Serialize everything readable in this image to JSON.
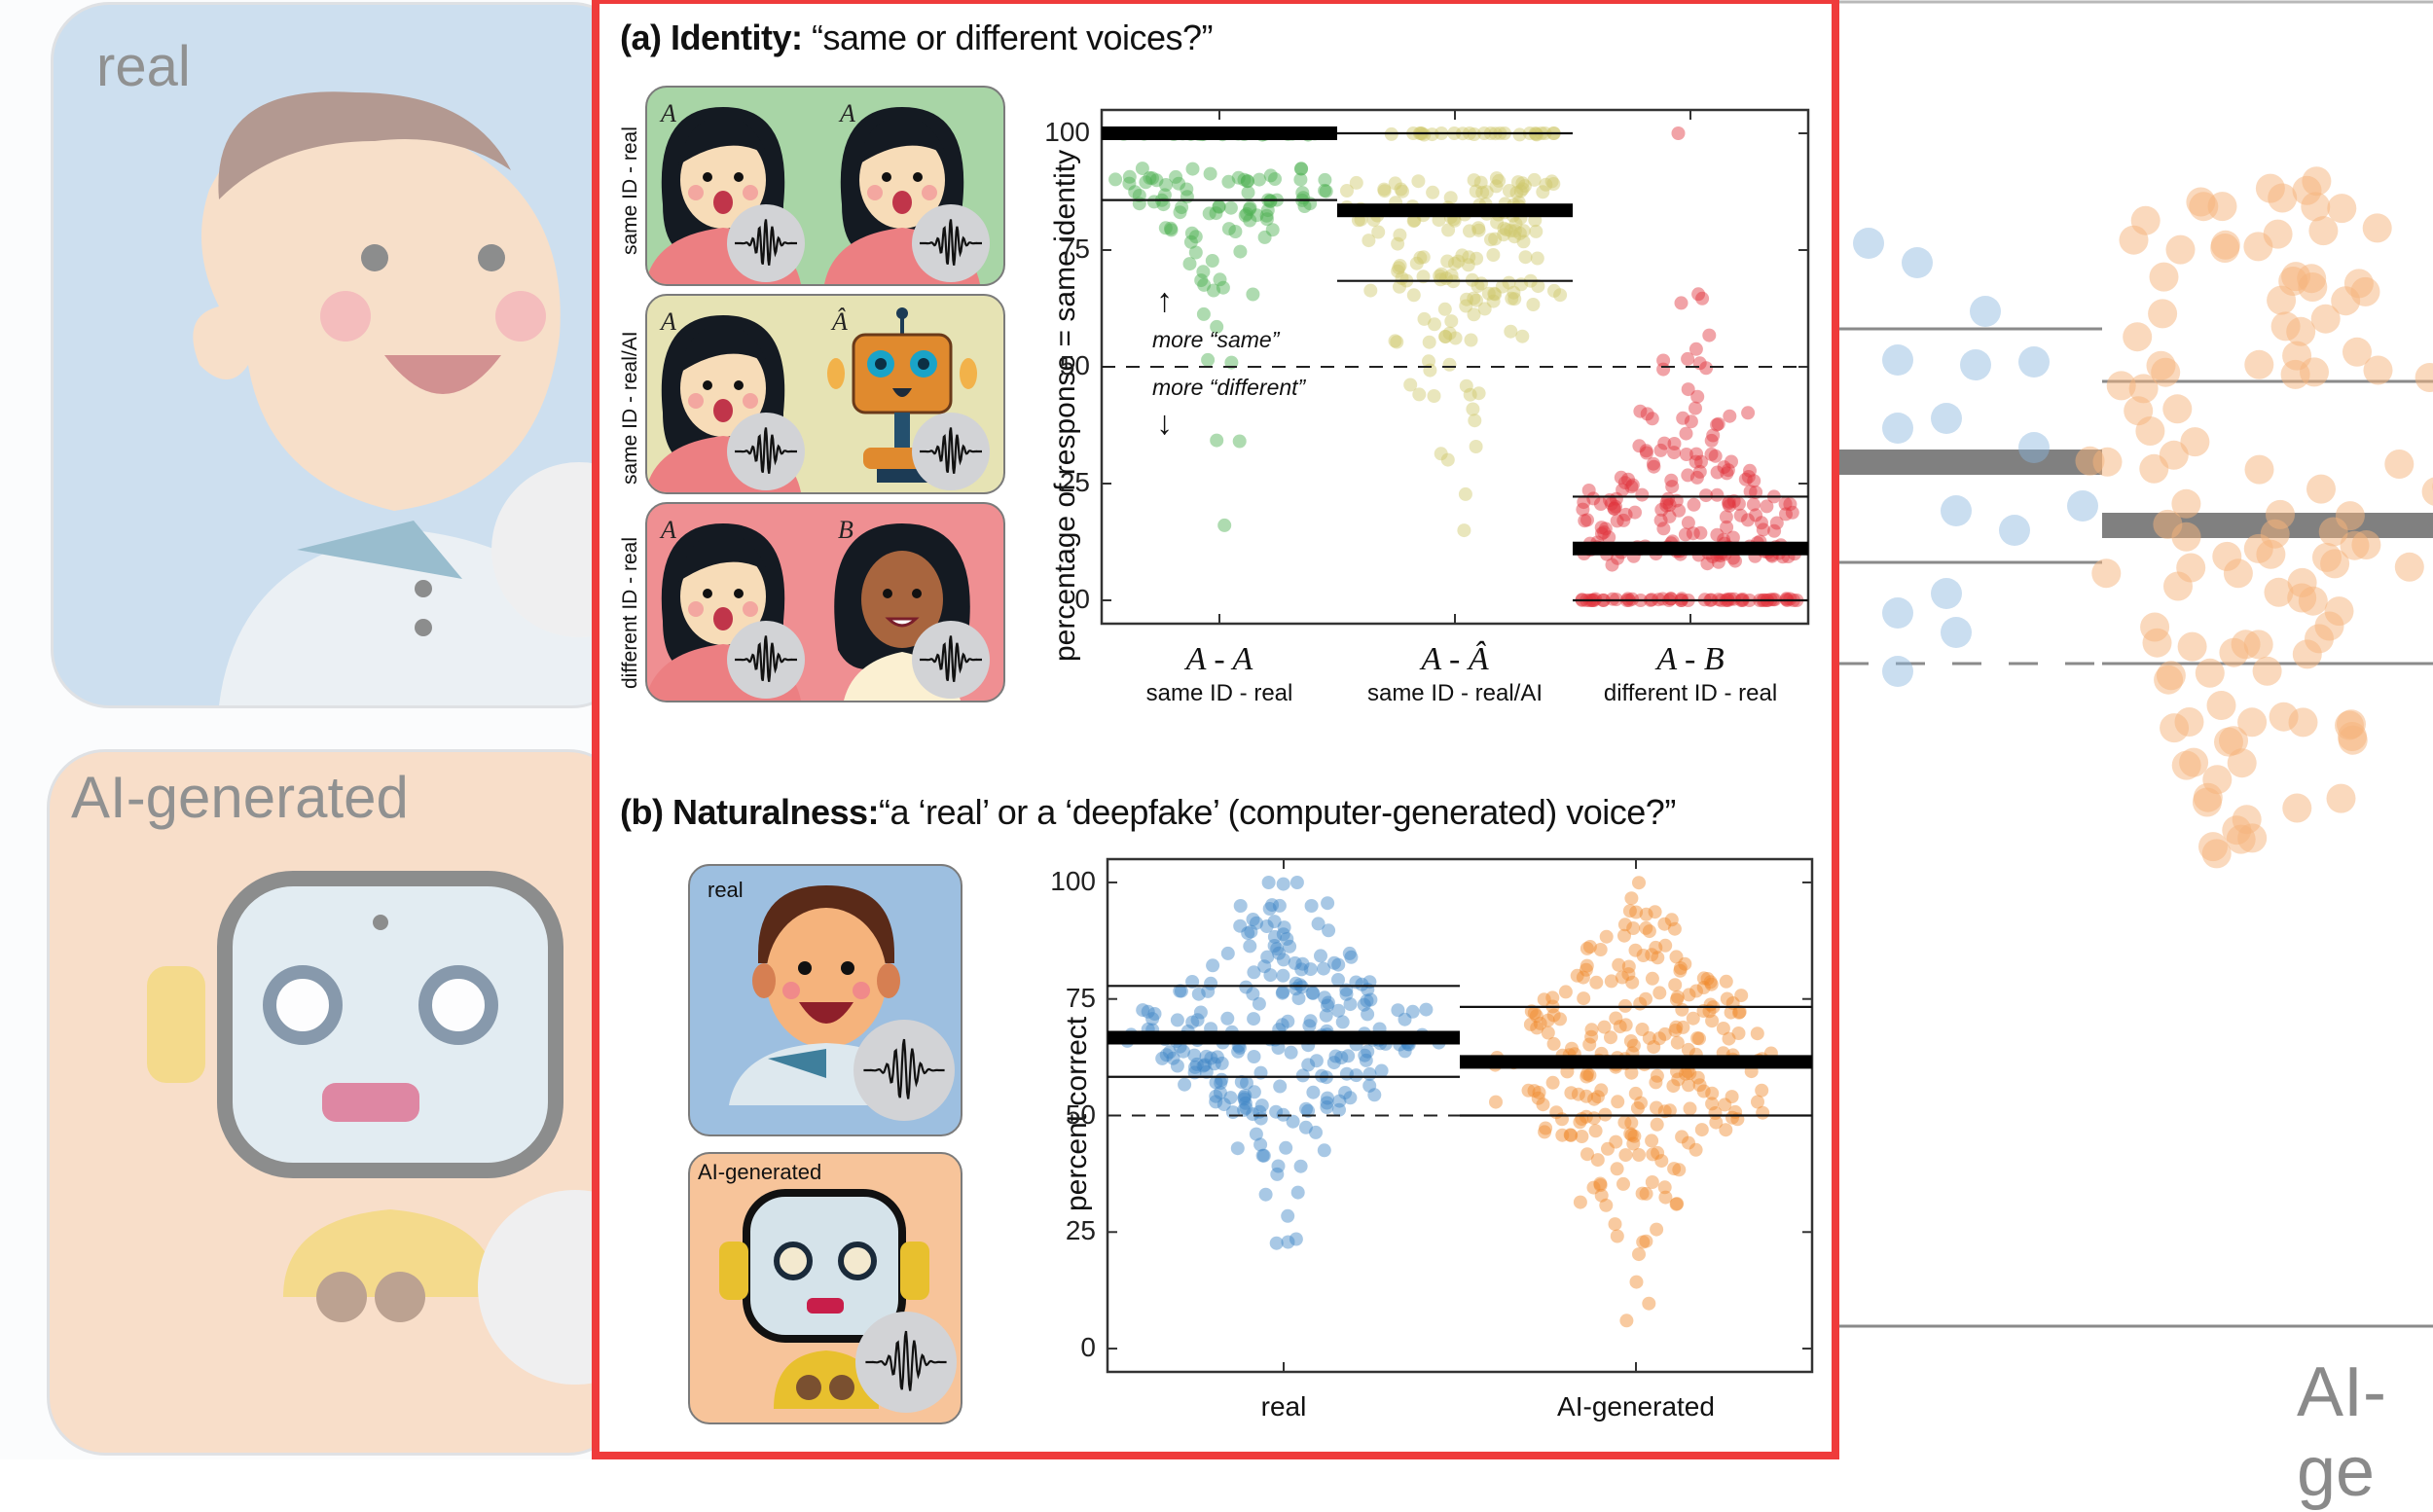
{
  "background": {
    "left_cards": [
      {
        "label": "real",
        "color": "#a8c8e4"
      },
      {
        "label": "AI-generated",
        "color": "#f6c6a0"
      }
    ],
    "right_partial_label": "AI-ge"
  },
  "panel_a": {
    "title_bold": "(a) Identity:",
    "title_rest": " “same or different voices?”",
    "stimuli": [
      {
        "row_label": "same ID - real",
        "color": "#a8d5a6",
        "left": {
          "letter": "A",
          "kind": "woman-a"
        },
        "right": {
          "letter": "A",
          "kind": "woman-a"
        }
      },
      {
        "row_label": "same ID - real/AI",
        "color": "#e6e3b4",
        "left": {
          "letter": "A",
          "kind": "woman-a"
        },
        "right": {
          "letter": "Â",
          "kind": "orange-robot"
        }
      },
      {
        "row_label": "different ID - real",
        "color": "#ef8f92",
        "left": {
          "letter": "A",
          "kind": "woman-a"
        },
        "right": {
          "letter": "B",
          "kind": "woman-b"
        }
      }
    ],
    "annotations": {
      "more_same": "more “same”",
      "more_different": "more “different”"
    }
  },
  "panel_b": {
    "title_bold": "(b) Naturalness:",
    "title_rest": "“a ‘real’ or a ‘deepfake’ (computer-generated) voice?”",
    "stimuli": [
      {
        "label": "real",
        "color": "#9dbfe0",
        "kind": "man"
      },
      {
        "label": "AI-generated",
        "color": "#f7c49a",
        "kind": "grey-robot"
      }
    ]
  },
  "chart_data": [
    {
      "type": "scatter",
      "subtype": "swarm",
      "title": "(a) Identity: “same or different voices?”",
      "xlabel": "",
      "ylabel": "percentage of response = same identity",
      "ylim": [
        -5,
        105
      ],
      "yticks": [
        0,
        25,
        50,
        75,
        100
      ],
      "grid": false,
      "reference_line": {
        "y": 50,
        "style": "dashed"
      },
      "categories": [
        {
          "symbol": "A - A",
          "label": "same ID - real",
          "color": "#4caf50"
        },
        {
          "symbol": "A - Â",
          "label": "same ID - real/AI",
          "color": "#cfc76a"
        },
        {
          "symbol": "A - B",
          "label": "different ID - real",
          "color": "#e0343c"
        }
      ],
      "series": [
        {
          "name": "same ID - real",
          "median": 100,
          "q1": 85.7,
          "q3": 100,
          "min": 15.8,
          "max": 100,
          "clusters": [
            [
              100,
              42
            ],
            [
              91,
              16
            ],
            [
              89,
              10
            ],
            [
              86,
              18
            ],
            [
              84,
              14
            ],
            [
              81,
              8
            ],
            [
              78,
              6
            ],
            [
              73,
              4
            ],
            [
              70,
              3
            ],
            [
              67,
              4
            ],
            [
              63,
              1
            ],
            [
              60,
              1
            ],
            [
              50,
              2
            ],
            [
              33,
              2
            ],
            [
              15.8,
              1
            ]
          ]
        },
        {
          "name": "same ID - real/AI",
          "median": 83.5,
          "q1": 68.4,
          "q3": 100,
          "min": 16.7,
          "max": 100,
          "clusters": [
            [
              100,
              26
            ],
            [
              89,
              26
            ],
            [
              86,
              10
            ],
            [
              83,
              22
            ],
            [
              80,
              12
            ],
            [
              78,
              14
            ],
            [
              73,
              14
            ],
            [
              70,
              10
            ],
            [
              67,
              16
            ],
            [
              64,
              12
            ],
            [
              60,
              4
            ],
            [
              56,
              10
            ],
            [
              50,
              3
            ],
            [
              45,
              6
            ],
            [
              40,
              2
            ],
            [
              33,
              2
            ],
            [
              30,
              1
            ],
            [
              22,
              1
            ],
            [
              16.7,
              1
            ]
          ]
        },
        {
          "name": "different ID - real",
          "median": 11.1,
          "q1": 0,
          "q3": 22.2,
          "min": 0,
          "max": 100,
          "clusters": [
            [
              100,
              1
            ],
            [
              67,
              1
            ],
            [
              64,
              2
            ],
            [
              55,
              2
            ],
            [
              50,
              5
            ],
            [
              45,
              2
            ],
            [
              40,
              8
            ],
            [
              37,
              4
            ],
            [
              33,
              8
            ],
            [
              30,
              8
            ],
            [
              27,
              10
            ],
            [
              25,
              10
            ],
            [
              22,
              18
            ],
            [
              20,
              20
            ],
            [
              17,
              16
            ],
            [
              14,
              14
            ],
            [
              11,
              34
            ],
            [
              9,
              14
            ],
            [
              0,
              56
            ]
          ]
        }
      ]
    },
    {
      "type": "scatter",
      "subtype": "swarm",
      "title": "(b) Naturalness: “a ‘real’ or a ‘deepfake’ (computer-generated) voice?”",
      "xlabel": "",
      "ylabel": "percent correct",
      "ylim": [
        -5,
        105
      ],
      "yticks": [
        0,
        25,
        50,
        75,
        100
      ],
      "grid": false,
      "reference_line": {
        "y": 50,
        "style": "dashed"
      },
      "categories": [
        {
          "symbol": "",
          "label": "real",
          "color": "#3d85c6"
        },
        {
          "symbol": "",
          "label": "AI-generated",
          "color": "#f08a2c"
        }
      ],
      "series": [
        {
          "name": "real",
          "median": 66.7,
          "q1": 58.3,
          "q3": 77.8,
          "min": 21.4,
          "max": 100,
          "clusters": [
            [
              100,
              3
            ],
            [
              95,
              6
            ],
            [
              91,
              8
            ],
            [
              88,
              6
            ],
            [
              85,
              10
            ],
            [
              81,
              12
            ],
            [
              78,
              16
            ],
            [
              75,
              16
            ],
            [
              71,
              22
            ],
            [
              67,
              28
            ],
            [
              64,
              20
            ],
            [
              62,
              20
            ],
            [
              58,
              16
            ],
            [
              55,
              14
            ],
            [
              52,
              10
            ],
            [
              50,
              8
            ],
            [
              47,
              4
            ],
            [
              43,
              6
            ],
            [
              38,
              3
            ],
            [
              34,
              2
            ],
            [
              28,
              1
            ],
            [
              24,
              2
            ],
            [
              21.4,
              1
            ]
          ]
        },
        {
          "name": "AI-generated",
          "median": 61.5,
          "q1": 50,
          "q3": 73.3,
          "min": 5,
          "max": 100,
          "clusters": [
            [
              100,
              1
            ],
            [
              95,
              2
            ],
            [
              92,
              6
            ],
            [
              89,
              6
            ],
            [
              85,
              10
            ],
            [
              81,
              10
            ],
            [
              78,
              14
            ],
            [
              75,
              16
            ],
            [
              71,
              16
            ],
            [
              68,
              20
            ],
            [
              65,
              12
            ],
            [
              62,
              22
            ],
            [
              58,
              18
            ],
            [
              54,
              22
            ],
            [
              50,
              20
            ],
            [
              47,
              14
            ],
            [
              43,
              10
            ],
            [
              40,
              6
            ],
            [
              36,
              6
            ],
            [
              32,
              8
            ],
            [
              27,
              2
            ],
            [
              23,
              3
            ],
            [
              20,
              1
            ],
            [
              13,
              1
            ],
            [
              9,
              1
            ],
            [
              5,
              1
            ]
          ]
        }
      ]
    }
  ]
}
